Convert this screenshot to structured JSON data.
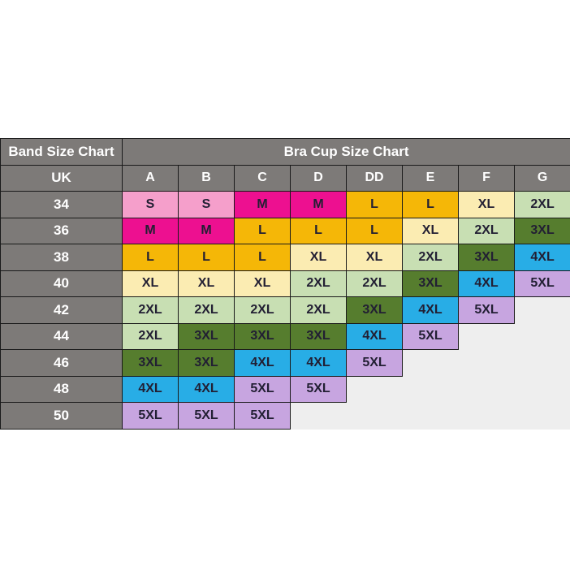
{
  "chart_data": {
    "type": "table",
    "band_header": "Band Size Chart",
    "cup_header": "Bra Cup Size Chart",
    "row_header_label": "UK",
    "cup_columns": [
      "A",
      "B",
      "C",
      "D",
      "DD",
      "E",
      "F",
      "G"
    ],
    "rows": [
      {
        "band": "34",
        "cells": [
          "S",
          "S",
          "M",
          "M",
          "L",
          "L",
          "XL",
          "2XL"
        ]
      },
      {
        "band": "36",
        "cells": [
          "M",
          "M",
          "L",
          "L",
          "L",
          "XL",
          "2XL",
          "3XL"
        ]
      },
      {
        "band": "38",
        "cells": [
          "L",
          "L",
          "L",
          "XL",
          "XL",
          "2XL",
          "3XL",
          "4XL"
        ]
      },
      {
        "band": "40",
        "cells": [
          "XL",
          "XL",
          "XL",
          "2XL",
          "2XL",
          "3XL",
          "4XL",
          "5XL"
        ]
      },
      {
        "band": "42",
        "cells": [
          "2XL",
          "2XL",
          "2XL",
          "2XL",
          "3XL",
          "4XL",
          "5XL",
          ""
        ]
      },
      {
        "band": "44",
        "cells": [
          "2XL",
          "3XL",
          "3XL",
          "3XL",
          "4XL",
          "5XL",
          "",
          ""
        ]
      },
      {
        "band": "46",
        "cells": [
          "3XL",
          "3XL",
          "4XL",
          "4XL",
          "5XL",
          "",
          "",
          ""
        ]
      },
      {
        "band": "48",
        "cells": [
          "4XL",
          "4XL",
          "5XL",
          "5XL",
          "",
          "",
          "",
          ""
        ]
      },
      {
        "band": "50",
        "cells": [
          "5XL",
          "5XL",
          "5XL",
          "",
          "",
          "",
          "",
          ""
        ]
      }
    ],
    "size_colors": {
      "S": "#f59fcb",
      "M": "#ed1090",
      "L": "#f5b707",
      "XL": "#fbecb2",
      "2XL": "#c8dfb3",
      "3XL": "#567d2e",
      "4XL": "#28ade6",
      "5XL": "#c7a5e0"
    },
    "style_colors": {
      "header_bg": "#7d7a78",
      "header_text": "#ffffff",
      "cell_text": "#221f33",
      "border": "#1a1a1a",
      "empty_region_bg": "#eeeeee",
      "page_bg": "#ffffff"
    }
  }
}
